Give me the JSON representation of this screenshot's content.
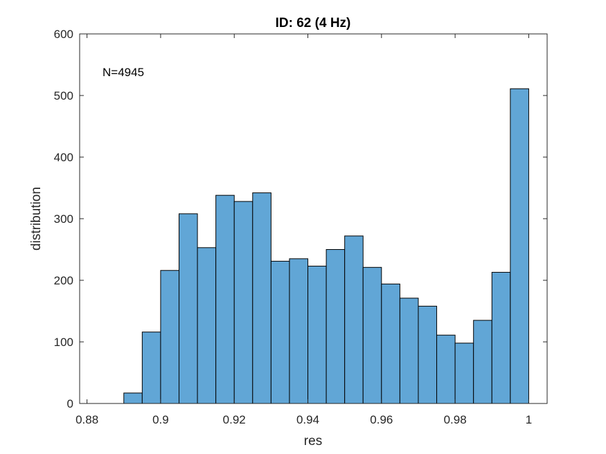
{
  "chart_data": {
    "type": "bar",
    "title": "ID: 62 (4 Hz)",
    "xlabel": "res",
    "ylabel": "distribution",
    "annotation": "N=4945",
    "xlim": [
      0.878,
      1.005
    ],
    "ylim": [
      0,
      600
    ],
    "xticks": [
      0.88,
      0.9,
      0.92,
      0.94,
      0.96,
      0.98,
      1
    ],
    "xtick_labels": [
      "0.88",
      "0.9",
      "0.92",
      "0.94",
      "0.96",
      "0.98",
      "1"
    ],
    "yticks": [
      0,
      100,
      200,
      300,
      400,
      500,
      600
    ],
    "ytick_labels": [
      "0",
      "100",
      "200",
      "300",
      "400",
      "500",
      "600"
    ],
    "bin_edges": [
      0.89,
      0.895,
      0.9,
      0.905,
      0.91,
      0.915,
      0.92,
      0.925,
      0.93,
      0.935,
      0.94,
      0.945,
      0.95,
      0.955,
      0.96,
      0.965,
      0.97,
      0.975,
      0.98,
      0.985,
      0.99,
      0.995,
      1.0
    ],
    "values": [
      17,
      116,
      216,
      308,
      253,
      338,
      328,
      342,
      231,
      235,
      223,
      250,
      272,
      221,
      194,
      171,
      158,
      111,
      98,
      135,
      213,
      511
    ],
    "bar_color": "#61a6d6",
    "edge_color": "#000000",
    "grid": false
  }
}
